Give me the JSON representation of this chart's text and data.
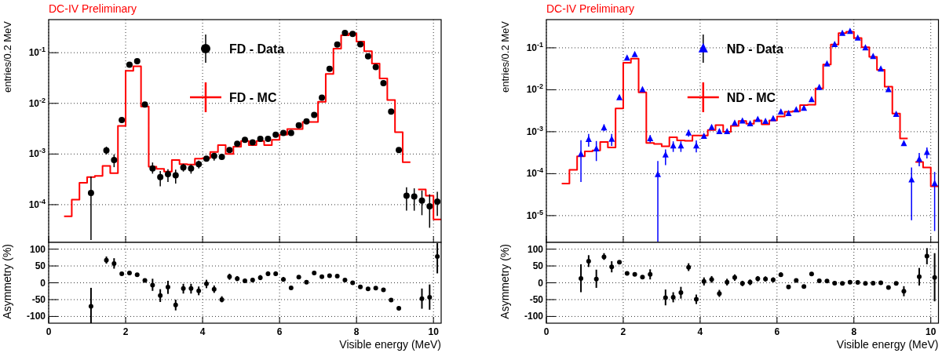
{
  "chart_data": [
    {
      "type": "scatter",
      "title": "DC-IV Preliminary",
      "ylabel": "entries/0.2 MeV",
      "log": "y",
      "grid": true,
      "legend": "top",
      "tick_labels": "y",
      "xlim": [
        0,
        10.2
      ],
      "xticks": [
        0,
        2,
        4,
        6,
        8,
        10
      ],
      "ylim": [
        1.8e-05,
        0.45
      ],
      "yticks": [
        {
          "value": 0.0001,
          "label": "10$^{-4}$"
        },
        {
          "value": 0.001,
          "label": "10$^{-3}$"
        },
        {
          "value": 0.01,
          "label": "10$^{-2}$"
        },
        {
          "value": 0.1,
          "label": "10$^{-1}$"
        }
      ],
      "series": [
        {
          "name": "FD - Data",
          "marker": "circle",
          "color": "#000000",
          "x": [
            1.1,
            1.5,
            1.7,
            1.9,
            2.1,
            2.3,
            2.5,
            2.7,
            2.9,
            3.1,
            3.3,
            3.5,
            3.7,
            3.9,
            4.1,
            4.3,
            4.5,
            4.7,
            4.9,
            5.1,
            5.3,
            5.5,
            5.7,
            5.9,
            6.1,
            6.3,
            6.5,
            6.7,
            6.9,
            7.1,
            7.3,
            7.5,
            7.7,
            7.9,
            8.1,
            8.3,
            8.5,
            8.7,
            8.9,
            9.1,
            9.3,
            9.5,
            9.7,
            9.9,
            10.1
          ],
          "values": [
            0.00017,
            0.00118,
            0.00076,
            0.0047,
            0.058,
            0.068,
            0.0095,
            0.00052,
            0.00035,
            0.0004,
            0.00038,
            0.00054,
            0.00052,
            0.00063,
            0.00081,
            0.00092,
            0.00088,
            0.0012,
            0.0016,
            0.0019,
            0.0017,
            0.002,
            0.002,
            0.0024,
            0.0026,
            0.0026,
            0.0037,
            0.0044,
            0.0059,
            0.013,
            0.048,
            0.145,
            0.245,
            0.234,
            0.147,
            0.085,
            0.052,
            0.025,
            0.0069,
            0.0012,
            0.00015,
            0.000145,
            0.00012,
            9.3e-05,
            0.000115
          ],
          "errors": [
            [
              2e-05,
              0.00036
            ],
            [
              0.00098,
              0.0014
            ],
            [
              0.00055,
              0.00098
            ],
            null,
            null,
            null,
            null,
            [
              0.00041,
              0.00068
            ],
            [
              0.00023,
              0.00046
            ],
            [
              0.00028,
              0.0005
            ],
            [
              0.00026,
              0.00049
            ],
            [
              0.00045,
              0.00064
            ],
            [
              0.00041,
              0.00062
            ],
            [
              0.00052,
              0.00074
            ],
            null,
            [
              0.00074,
              0.001
            ],
            null,
            null,
            null,
            null,
            null,
            null,
            null,
            null,
            null,
            null,
            null,
            null,
            null,
            null,
            null,
            null,
            null,
            null,
            null,
            null,
            null,
            null,
            null,
            null,
            [
              7.6e-05,
              0.00022
            ],
            [
              7.6e-05,
              0.00021
            ],
            [
              6.2e-05,
              0.00019
            ],
            [
              3.5e-05,
              0.00016
            ],
            [
              6e-05,
              0.00018
            ]
          ]
        },
        {
          "name": "FD - MC",
          "type": "step",
          "color": "#ff0000",
          "x": [
            0.4,
            0.6,
            0.8,
            1,
            1.2,
            1.4,
            1.6,
            1.8,
            2,
            2.2,
            2.4,
            2.6,
            2.8,
            3,
            3.2,
            3.4,
            3.6,
            3.8,
            4,
            4.2,
            4.4,
            4.6,
            4.8,
            5,
            5.2,
            5.4,
            5.6,
            5.8,
            6,
            6.2,
            6.4,
            6.6,
            6.8,
            7,
            7.2,
            7.4,
            7.6,
            7.8,
            8,
            8.2,
            8.4,
            8.6,
            8.8,
            9,
            9.2,
            9.4,
            9.6,
            9.8,
            10,
            10.2
          ],
          "values": [
            5.9e-05,
            0.000126,
            0.00027,
            0.00035,
            0.00037,
            0.00058,
            0.00042,
            0.0036,
            0.044,
            0.054,
            0.0087,
            0.00056,
            0.00051,
            0.00045,
            0.00076,
            0.00063,
            0.00062,
            0.00081,
            0.00083,
            0.0011,
            0.0015,
            0.001,
            0.0014,
            0.0018,
            0.0015,
            0.0018,
            0.0015,
            0.0019,
            0.0024,
            0.0031,
            0.0031,
            0.0043,
            0.0043,
            0.0107,
            0.038,
            0.12,
            0.22,
            0.24,
            0.166,
            0.107,
            0.061,
            0.031,
            0.0116,
            0.0027,
            0.00069,
            null,
            0.0002,
            0.00015,
            5.1e-05,
            5.1e-05
          ]
        }
      ]
    },
    {
      "type": "scatter",
      "title": "DC-IV Preliminary",
      "ylabel": "entries/0.2 MeV",
      "log": "y",
      "grid": true,
      "legend": "top",
      "tick_labels": "y",
      "xlim": [
        0,
        10.2
      ],
      "xticks": [
        0,
        2,
        4,
        6,
        8,
        10
      ],
      "ylim": [
        2.3e-06,
        0.47
      ],
      "yticks": [
        {
          "value": 1e-05,
          "label": "10$^{-5}$"
        },
        {
          "value": 0.0001,
          "label": "10$^{-4}$"
        },
        {
          "value": 0.001,
          "label": "10$^{-3}$"
        },
        {
          "value": 0.01,
          "label": "10$^{-2}$"
        },
        {
          "value": 0.1,
          "label": "10$^{-1}$"
        }
      ],
      "series": [
        {
          "name": "ND - Data",
          "marker": "triangle",
          "color": "#0000ff",
          "x": [
            0.9,
            1.1,
            1.3,
            1.5,
            1.7,
            1.9,
            2.1,
            2.3,
            2.5,
            2.7,
            2.9,
            3.1,
            3.3,
            3.5,
            3.7,
            3.9,
            4.1,
            4.3,
            4.5,
            4.7,
            4.9,
            5.1,
            5.3,
            5.5,
            5.7,
            5.9,
            6.1,
            6.3,
            6.5,
            6.7,
            6.9,
            7.1,
            7.3,
            7.5,
            7.7,
            7.9,
            8.1,
            8.3,
            8.5,
            8.7,
            8.9,
            9.1,
            9.3,
            9.5,
            9.7,
            9.9,
            10.1
          ],
          "values": [
            0.00029,
            0.00065,
            0.00039,
            0.00123,
            0.00066,
            0.0065,
            0.057,
            0.069,
            0.01,
            0.00068,
            9.5e-05,
            0.00028,
            0.00046,
            0.00046,
            0.00093,
            0.00046,
            0.00078,
            0.00126,
            0.001,
            0.001,
            0.0016,
            0.0018,
            0.00155,
            0.00195,
            0.00175,
            0.00205,
            0.00295,
            0.0027,
            0.0033,
            0.0036,
            0.0058,
            0.0113,
            0.041,
            0.12,
            0.22,
            0.245,
            0.17,
            0.1,
            0.062,
            0.031,
            0.01,
            0.0026,
            0.00052,
            7.1e-05,
            0.00022,
            0.00032,
            5.8e-05
          ],
          "errors": [
            [
              6.3e-05,
              0.00063
            ],
            [
              0.00044,
              0.00088
            ],
            [
              0.0002,
              0.0006
            ],
            [
              0.00103,
              0.0015
            ],
            [
              0.00046,
              0.00088
            ],
            null,
            null,
            null,
            null,
            [
              0.00055,
              0.00083
            ],
            [
              2.4e-06,
              0.0002
            ],
            [
              0.00016,
              0.00038
            ],
            [
              0.00033,
              0.00059
            ],
            [
              0.00033,
              0.00059
            ],
            [
              0.00076,
              0.0011
            ],
            [
              0.00032,
              0.00062
            ],
            null,
            null,
            null,
            null,
            null,
            null,
            null,
            null,
            null,
            null,
            null,
            null,
            null,
            null,
            null,
            null,
            null,
            null,
            null,
            null,
            null,
            null,
            null,
            null,
            null,
            null,
            null,
            [
              7.8e-06,
              0.00014
            ],
            [
              0.00015,
              0.00031
            ],
            [
              0.00023,
              0.00042
            ],
            [
              4.3e-06,
              0.00011
            ]
          ]
        },
        {
          "name": "ND - MC",
          "type": "step",
          "color": "#ff0000",
          "x": [
            0.4,
            0.6,
            0.8,
            1,
            1.2,
            1.4,
            1.6,
            1.8,
            2,
            2.2,
            2.4,
            2.6,
            2.8,
            3,
            3.2,
            3.4,
            3.6,
            3.8,
            4,
            4.2,
            4.4,
            4.6,
            4.8,
            5,
            5.2,
            5.4,
            5.6,
            5.8,
            6,
            6.2,
            6.4,
            6.6,
            6.8,
            7,
            7.2,
            7.4,
            7.6,
            7.8,
            8,
            8.2,
            8.4,
            8.6,
            8.8,
            9,
            9.2,
            9.4,
            9.6,
            9.8,
            10,
            10.2
          ],
          "values": [
            5.8e-05,
            0.000123,
            0.00026,
            0.00034,
            0.00036,
            0.00057,
            0.00042,
            0.0036,
            0.044,
            0.055,
            0.0087,
            0.00054,
            0.00051,
            0.00045,
            0.00074,
            0.00062,
            0.00061,
            0.00081,
            0.00081,
            0.0011,
            0.00144,
            0.001,
            0.00138,
            0.0018,
            0.00155,
            0.00185,
            0.0015,
            0.00185,
            0.0023,
            0.003,
            0.0031,
            0.0043,
            0.0044,
            0.0107,
            0.04,
            0.12,
            0.224,
            0.24,
            0.17,
            0.103,
            0.061,
            0.03,
            0.0118,
            0.0027,
            0.00069,
            null,
            0.00019,
            0.00014,
            5e-05,
            5e-05
          ]
        }
      ]
    },
    {
      "type": "scatter",
      "xlabel": "Visible energy (MeV)",
      "ylabel": "Asymmetry (%)",
      "grid": true,
      "marker": "circle",
      "xlim": [
        0,
        10.2
      ],
      "xticks": [
        0,
        2,
        4,
        6,
        8,
        10
      ],
      "ylim": [
        -120,
        120
      ],
      "yticks": [
        -100,
        -50,
        0,
        50,
        100
      ],
      "series": [
        {
          "color": "#000000",
          "x": [
            1.1,
            1.5,
            1.7,
            1.9,
            2.1,
            2.3,
            2.5,
            2.7,
            2.9,
            3.1,
            3.3,
            3.5,
            3.7,
            3.9,
            4.1,
            4.3,
            4.5,
            4.7,
            4.9,
            5.1,
            5.3,
            5.5,
            5.7,
            5.9,
            6.1,
            6.3,
            6.5,
            6.7,
            6.9,
            7.1,
            7.3,
            7.5,
            7.7,
            7.9,
            8.1,
            8.3,
            8.5,
            8.7,
            8.9,
            9.1,
            9.7,
            9.9,
            10.1
          ],
          "values": [
            -70,
            67,
            57,
            27,
            29,
            24,
            7,
            -7,
            -38,
            -13,
            -66,
            -17,
            -17,
            -24,
            -3,
            -19,
            -50,
            18,
            12,
            6,
            8,
            15,
            27,
            27,
            10,
            -15,
            17,
            2,
            29,
            18,
            21,
            20,
            8,
            0,
            -12,
            -18,
            -16,
            -21,
            -51,
            -76,
            -47,
            -43,
            78
          ],
          "errors": [
            [
              -120,
              -15
            ],
            [
              57,
              78
            ],
            [
              42,
              73
            ],
            null,
            null,
            null,
            null,
            [
              -24,
              12
            ],
            [
              -57,
              -19
            ],
            [
              -33,
              6
            ],
            [
              -82,
              -50
            ],
            [
              -32,
              -3
            ],
            [
              -32,
              -3
            ],
            [
              -37,
              -11
            ],
            [
              -16,
              9
            ],
            [
              -30,
              -8
            ],
            [
              -58,
              -40
            ],
            [
              9,
              27
            ],
            [
              5,
              20
            ],
            [
              0,
              12
            ],
            [
              2,
              15
            ],
            [
              8,
              23
            ],
            [
              21,
              34
            ],
            [
              21,
              34
            ],
            [
              4,
              17
            ],
            null,
            null,
            null,
            null,
            null,
            null,
            null,
            null,
            null,
            null,
            null,
            null,
            null,
            null,
            [
              -81,
              -70
            ],
            [
              -77,
              -17
            ],
            [
              -80,
              -5
            ],
            [
              28,
              118
            ]
          ]
        }
      ]
    },
    {
      "type": "scatter",
      "xlabel": "Visible energy (MeV)",
      "ylabel": "Asymmetry (%)",
      "grid": true,
      "marker": "circle",
      "xlim": [
        0,
        10.2
      ],
      "xticks": [
        0,
        2,
        4,
        6,
        8,
        10
      ],
      "ylim": [
        -120,
        120
      ],
      "yticks": [
        -100,
        -50,
        0,
        50,
        100
      ],
      "series": [
        {
          "color": "#000000",
          "x": [
            0.9,
            1.1,
            1.3,
            1.5,
            1.7,
            1.9,
            2.1,
            2.3,
            2.5,
            2.7,
            3.1,
            3.3,
            3.5,
            3.7,
            3.9,
            4.1,
            4.3,
            4.5,
            4.7,
            4.9,
            5.1,
            5.3,
            5.5,
            5.7,
            5.9,
            6.1,
            6.3,
            6.5,
            6.7,
            6.9,
            7.1,
            7.3,
            7.5,
            7.7,
            7.9,
            8.1,
            8.3,
            8.5,
            8.7,
            8.9,
            9.1,
            9.3,
            9.7,
            9.9,
            10.1
          ],
          "values": [
            13,
            64,
            11,
            77,
            47,
            61,
            28,
            25,
            17,
            25,
            -44,
            -43,
            -29,
            46,
            -49,
            4,
            10,
            -32,
            2,
            16,
            -2,
            2,
            12,
            11,
            9,
            24,
            -12,
            7,
            -11,
            26,
            6,
            5,
            -1,
            -2,
            2,
            1,
            -2,
            -1,
            0,
            -14,
            -2,
            -25,
            18,
            79,
            16
          ],
          "errors": [
            [
              -28,
              55
            ],
            [
              47,
              82
            ],
            [
              -15,
              39
            ],
            [
              68,
              88
            ],
            [
              31,
              64
            ],
            null,
            null,
            null,
            null,
            [
              10,
              40
            ],
            [
              -67,
              -20
            ],
            [
              -58,
              -28
            ],
            [
              -47,
              -12
            ],
            [
              35,
              58
            ],
            [
              -63,
              -35
            ],
            [
              -8,
              16
            ],
            [
              0,
              20
            ],
            [
              -42,
              -21
            ],
            [
              -8,
              12
            ],
            [
              6,
              25
            ],
            [
              -10,
              6
            ],
            [
              -7,
              10
            ],
            [
              4,
              20
            ],
            [
              4,
              19
            ],
            [
              2,
              16
            ],
            [
              18,
              31
            ],
            [
              -18,
              -6
            ],
            null,
            null,
            null,
            null,
            null,
            null,
            null,
            null,
            null,
            null,
            null,
            null,
            null,
            null,
            [
              -40,
              -10
            ],
            [
              -8,
              44
            ],
            [
              55,
              103
            ],
            [
              -55,
              88
            ]
          ]
        }
      ]
    }
  ]
}
